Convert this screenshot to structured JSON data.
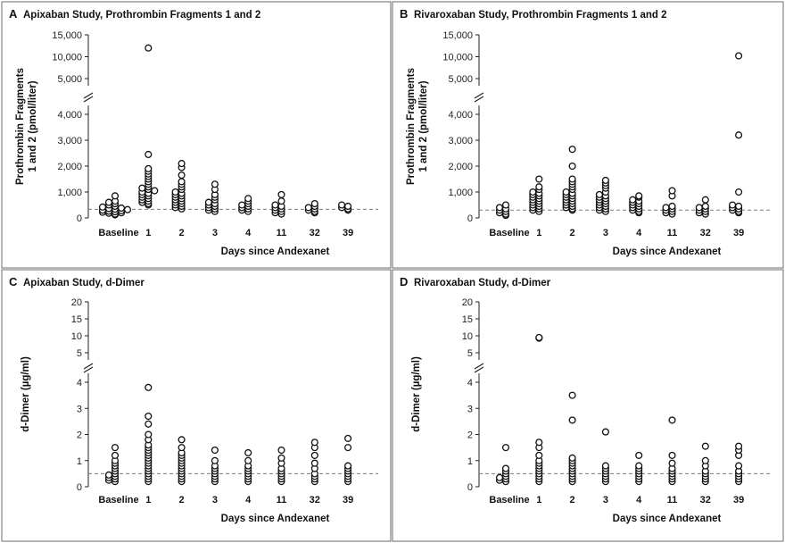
{
  "chart_data": [
    {
      "type": "scatter",
      "letter": "A",
      "title": "Apixaban Study, Prothrombin Fragments 1 and 2",
      "xlabel": "Days since Andexanet",
      "ylabel_lines": [
        "Prothrombin Fragments",
        "1 and 2 (pmol/liter)"
      ],
      "categories": [
        "Baseline",
        "1",
        "2",
        "3",
        "4",
        "11",
        "32",
        "39"
      ],
      "y_axis": {
        "broken": true,
        "lower_range": [
          0,
          4300
        ],
        "lower_ticks": [
          0,
          1000,
          2000,
          3000,
          4000
        ],
        "lower_tick_labels": [
          "0",
          "1,000",
          "2,000",
          "3,000",
          "4,000"
        ],
        "upper_range": [
          4000,
          15000
        ],
        "upper_ticks": [
          5000,
          10000,
          15000
        ],
        "upper_tick_labels": [
          "5,000",
          "10,000",
          "15,000"
        ]
      },
      "reference_line": 330,
      "points": [
        [
          120,
          150,
          180,
          200,
          220,
          240,
          260,
          280,
          300,
          320,
          340,
          360,
          380,
          420,
          450,
          500,
          550,
          600,
          650,
          850
        ],
        [
          500,
          550,
          600,
          650,
          700,
          750,
          800,
          850,
          900,
          950,
          1000,
          1050,
          1100,
          1150,
          1200,
          1300,
          1400,
          1500,
          1600,
          1700,
          1800,
          1900,
          2450,
          12000
        ],
        [
          350,
          400,
          450,
          500,
          550,
          600,
          650,
          700,
          750,
          800,
          850,
          900,
          950,
          1000,
          1100,
          1200,
          1300,
          1400,
          1650,
          1950,
          2100
        ],
        [
          250,
          300,
          350,
          400,
          450,
          500,
          550,
          600,
          700,
          800,
          900,
          1100,
          1300
        ],
        [
          250,
          300,
          350,
          400,
          450,
          500,
          550,
          650,
          750
        ],
        [
          150,
          200,
          250,
          300,
          350,
          400,
          450,
          500,
          650,
          900
        ],
        [
          200,
          250,
          300,
          350,
          400,
          450,
          550
        ],
        [
          300,
          350,
          400,
          450,
          500
        ]
      ]
    },
    {
      "type": "scatter",
      "letter": "B",
      "title": "Rivaroxaban Study, Prothrombin Fragments 1 and 2",
      "xlabel": "Days since Andexanet",
      "ylabel_lines": [
        "Prothrombin Fragments",
        "1 and 2 (pmol/liter)"
      ],
      "categories": [
        "Baseline",
        "1",
        "2",
        "3",
        "4",
        "11",
        "32",
        "39"
      ],
      "y_axis": {
        "broken": true,
        "lower_range": [
          0,
          4300
        ],
        "lower_ticks": [
          0,
          1000,
          2000,
          3000,
          4000
        ],
        "lower_tick_labels": [
          "0",
          "1,000",
          "2,000",
          "3,000",
          "4,000"
        ],
        "upper_range": [
          4000,
          15000
        ],
        "upper_ticks": [
          5000,
          10000,
          15000
        ],
        "upper_tick_labels": [
          "5,000",
          "10,000",
          "15,000"
        ]
      },
      "reference_line": 300,
      "points": [
        [
          100,
          150,
          200,
          250,
          300,
          350,
          400,
          500
        ],
        [
          250,
          300,
          350,
          400,
          450,
          500,
          550,
          600,
          650,
          700,
          750,
          800,
          850,
          900,
          950,
          1000,
          1100,
          1200,
          1500
        ],
        [
          300,
          350,
          400,
          450,
          500,
          550,
          600,
          650,
          700,
          750,
          800,
          850,
          900,
          950,
          1000,
          1100,
          1200,
          1300,
          1400,
          1500,
          2000,
          2650
        ],
        [
          250,
          300,
          350,
          400,
          450,
          500,
          550,
          600,
          650,
          700,
          750,
          800,
          850,
          900,
          1000,
          1150,
          1250,
          1350,
          1450
        ],
        [
          200,
          250,
          300,
          350,
          400,
          450,
          500,
          550,
          600,
          650,
          700,
          800,
          850
        ],
        [
          150,
          200,
          250,
          300,
          350,
          400,
          450,
          850,
          1050
        ],
        [
          150,
          200,
          250,
          300,
          350,
          400,
          450,
          700
        ],
        [
          200,
          250,
          300,
          350,
          400,
          450,
          500,
          1000,
          3200,
          10200
        ]
      ]
    },
    {
      "type": "scatter",
      "letter": "C",
      "title": "Apixaban Study, d-Dimer",
      "xlabel": "Days since Andexanet",
      "ylabel_lines": [
        "d-Dimer (µg/ml)"
      ],
      "categories": [
        "Baseline",
        "1",
        "2",
        "3",
        "4",
        "11",
        "32",
        "39"
      ],
      "y_axis": {
        "broken": true,
        "lower_range": [
          0,
          4.3
        ],
        "lower_ticks": [
          0,
          1,
          2,
          3,
          4
        ],
        "lower_tick_labels": [
          "0",
          "1",
          "2",
          "3",
          "4"
        ],
        "upper_range": [
          4,
          20
        ],
        "upper_ticks": [
          5,
          10,
          15,
          20
        ],
        "upper_tick_labels": [
          "5",
          "10",
          "15",
          "20"
        ]
      },
      "reference_line": 0.5,
      "points": [
        [
          0.2,
          0.25,
          0.3,
          0.35,
          0.4,
          0.45,
          0.5,
          0.6,
          0.7,
          0.8,
          0.9,
          1.0,
          1.2,
          1.5
        ],
        [
          0.2,
          0.3,
          0.4,
          0.5,
          0.6,
          0.7,
          0.8,
          0.9,
          1.0,
          1.1,
          1.2,
          1.3,
          1.4,
          1.5,
          1.6,
          1.8,
          2.0,
          2.4,
          2.7,
          3.8
        ],
        [
          0.2,
          0.3,
          0.4,
          0.5,
          0.6,
          0.7,
          0.8,
          0.9,
          1.0,
          1.1,
          1.2,
          1.3,
          1.5,
          1.8
        ],
        [
          0.2,
          0.3,
          0.4,
          0.5,
          0.6,
          0.7,
          0.8,
          1.0,
          1.4
        ],
        [
          0.2,
          0.3,
          0.4,
          0.5,
          0.6,
          0.7,
          0.8,
          1.0,
          1.3
        ],
        [
          0.2,
          0.3,
          0.4,
          0.5,
          0.6,
          0.7,
          0.9,
          1.1,
          1.4
        ],
        [
          0.2,
          0.3,
          0.4,
          0.5,
          0.7,
          0.9,
          1.2,
          1.5,
          1.7
        ],
        [
          0.2,
          0.3,
          0.4,
          0.5,
          0.6,
          0.7,
          0.8,
          1.5,
          1.85
        ]
      ]
    },
    {
      "type": "scatter",
      "letter": "D",
      "title": "Rivaroxaban Study, d-Dimer",
      "xlabel": "Days since Andexanet",
      "ylabel_lines": [
        "d-Dimer (µg/ml)"
      ],
      "categories": [
        "Baseline",
        "1",
        "2",
        "3",
        "4",
        "11",
        "32",
        "39"
      ],
      "y_axis": {
        "broken": true,
        "lower_range": [
          0,
          4.3
        ],
        "lower_ticks": [
          0,
          1,
          2,
          3,
          4
        ],
        "lower_tick_labels": [
          "0",
          "1",
          "2",
          "3",
          "4"
        ],
        "upper_range": [
          4,
          20
        ],
        "upper_ticks": [
          5,
          10,
          15,
          20
        ],
        "upper_tick_labels": [
          "5",
          "10",
          "15",
          "20"
        ]
      },
      "reference_line": 0.5,
      "points": [
        [
          0.2,
          0.25,
          0.3,
          0.35,
          0.4,
          0.5,
          0.6,
          0.7,
          1.5
        ],
        [
          0.2,
          0.3,
          0.4,
          0.5,
          0.6,
          0.7,
          0.8,
          0.9,
          1.0,
          1.2,
          1.5,
          1.7,
          9.3,
          9.5
        ],
        [
          0.2,
          0.3,
          0.4,
          0.5,
          0.6,
          0.7,
          0.8,
          0.9,
          1.0,
          1.1,
          2.55,
          3.5
        ],
        [
          0.2,
          0.3,
          0.4,
          0.5,
          0.6,
          0.7,
          0.8,
          2.1
        ],
        [
          0.2,
          0.3,
          0.4,
          0.5,
          0.6,
          0.7,
          0.8,
          1.2
        ],
        [
          0.2,
          0.3,
          0.4,
          0.5,
          0.6,
          0.7,
          0.9,
          1.2,
          2.55
        ],
        [
          0.2,
          0.3,
          0.4,
          0.5,
          0.6,
          0.8,
          1.0,
          1.55
        ],
        [
          0.2,
          0.3,
          0.4,
          0.5,
          0.6,
          0.8,
          1.2,
          1.4,
          1.55
        ]
      ]
    }
  ],
  "style": {
    "frame_color": "#6b6b6b",
    "marker_color": "#111111",
    "reference_line_color": "#7a7a7a",
    "background": "#ffffff"
  }
}
